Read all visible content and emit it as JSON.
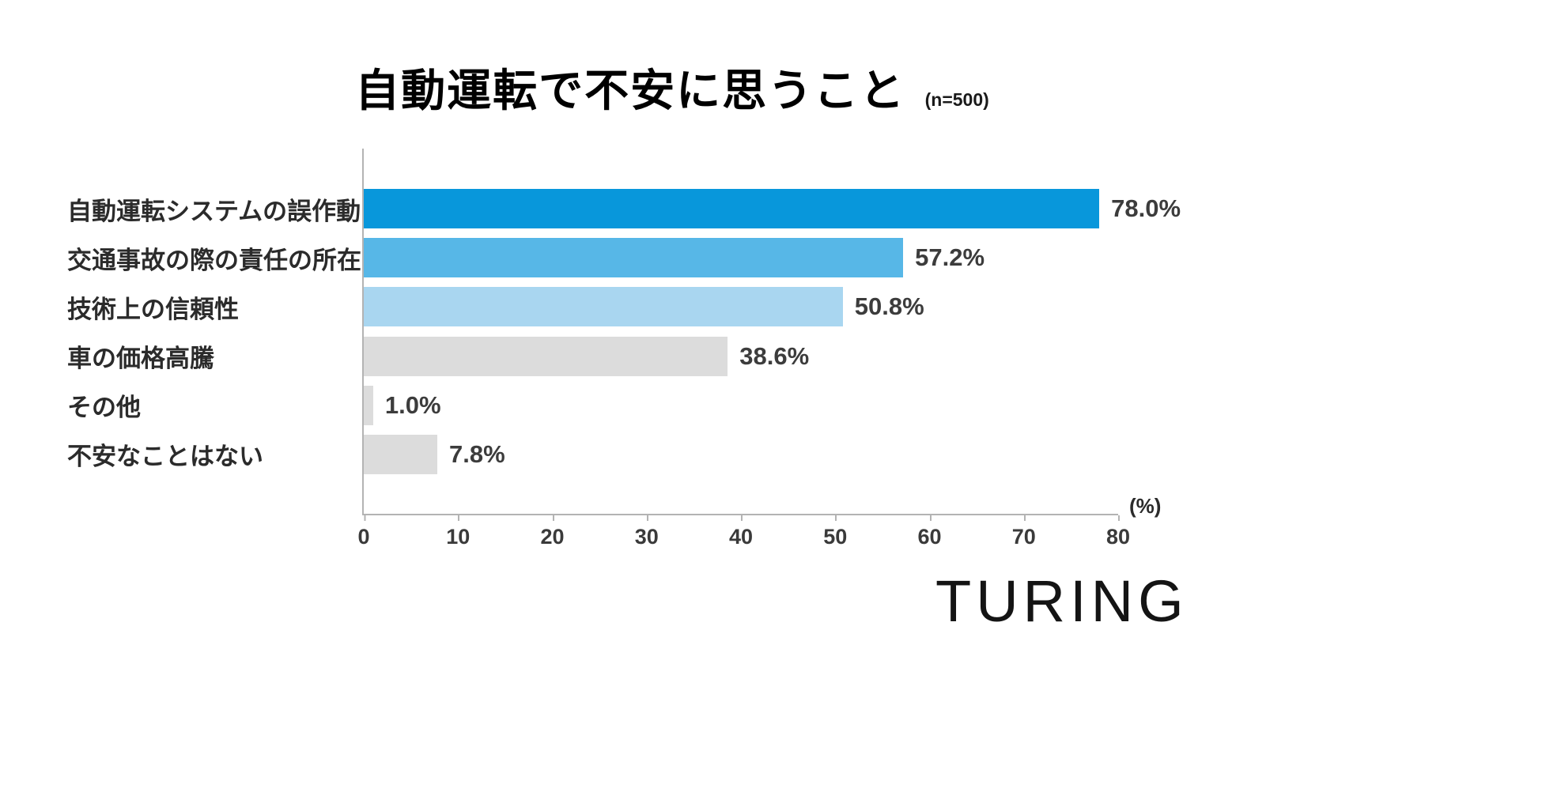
{
  "chart_data": {
    "type": "bar",
    "orientation": "horizontal",
    "title": "自動運転で不安に思うこと",
    "sample_note": "(n=500)",
    "categories": [
      "自動運転システムの誤作動",
      "交通事故の際の責任の所在",
      "技術上の信頼性",
      "車の価格高騰",
      "その他",
      "不安なことはない"
    ],
    "values": [
      78.0,
      57.2,
      50.8,
      38.6,
      1.0,
      7.8
    ],
    "value_labels": [
      "78.0%",
      "57.2%",
      "50.8%",
      "38.6%",
      "1.0%",
      "7.8%"
    ],
    "bar_colors": [
      "#0897DB",
      "#57B7E7",
      "#A9D6F0",
      "#DCDCDC",
      "#DCDCDC",
      "#DCDCDC"
    ],
    "xlim": [
      0,
      80
    ],
    "x_ticks": [
      0,
      10,
      20,
      30,
      40,
      50,
      60,
      70,
      80
    ],
    "x_unit_label": "(%)",
    "grid": false,
    "legend": false
  },
  "logo": {
    "text": "TURING"
  },
  "colors": {
    "axis": "#b3b3b3",
    "value_label": "#3c3c3c",
    "category_label": "#2b2b2b",
    "title": "#000000"
  }
}
